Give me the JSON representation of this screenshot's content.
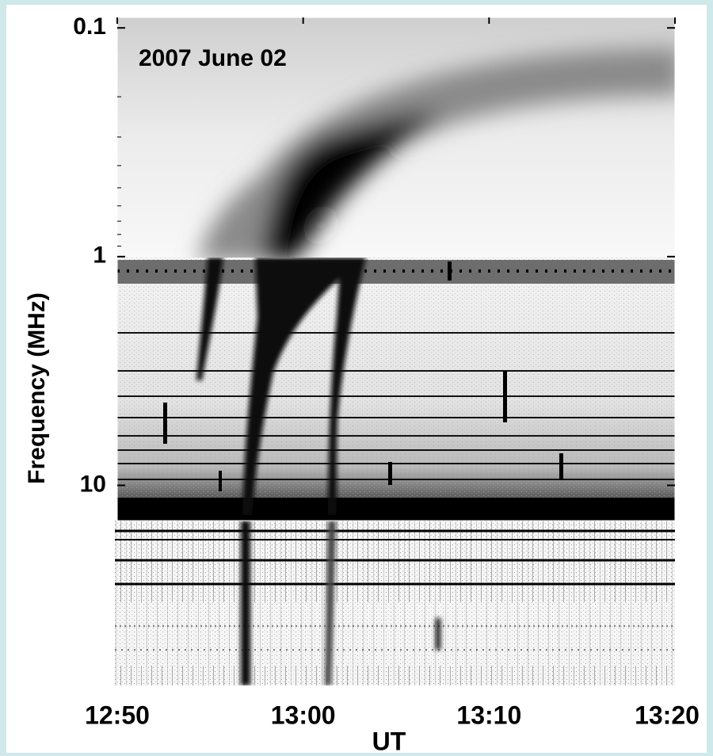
{
  "chart_data": {
    "type": "spectrogram",
    "title": "2007 June 02",
    "x_label": "UT",
    "y_label": "Frequency (MHz)",
    "xlim": [
      "12:50",
      "13:20"
    ],
    "xticks": [
      "12:50",
      "13:00",
      "13:10",
      "13:20"
    ],
    "ylim": [
      0.09,
      75
    ],
    "yticks": [
      0.1,
      1,
      10
    ],
    "y_log": true,
    "y_inverted": true
  }
}
